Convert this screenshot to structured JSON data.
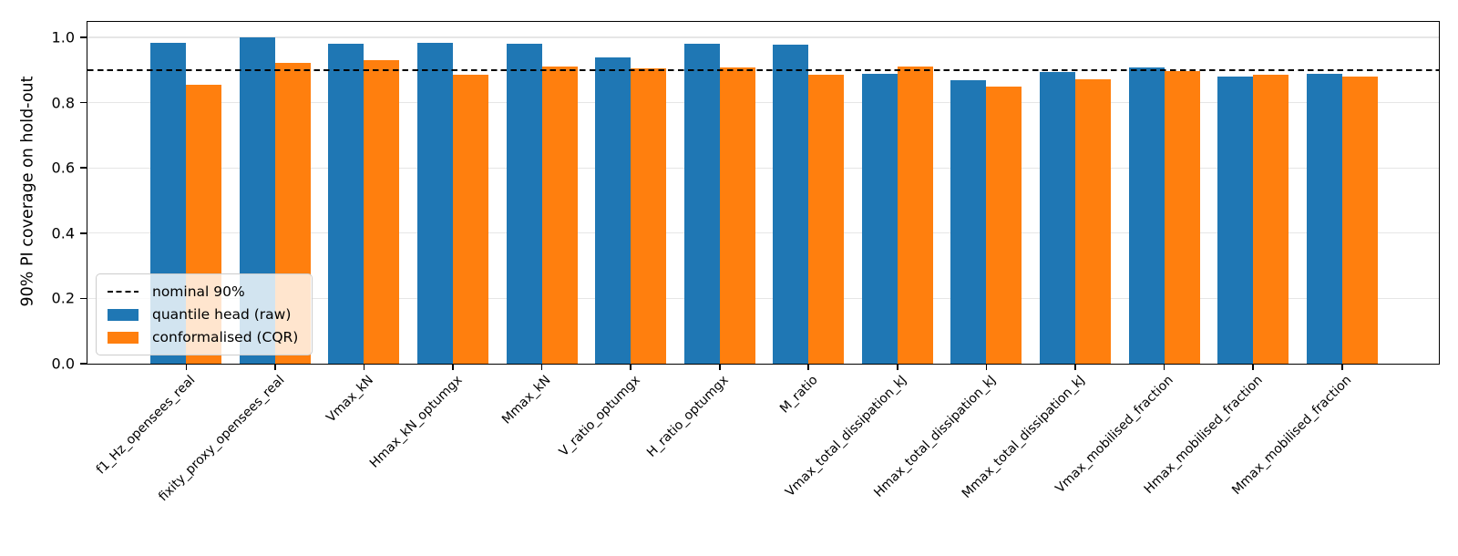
{
  "chart_data": {
    "type": "bar",
    "title": "",
    "xlabel": "",
    "ylabel": "90% PI coverage on hold-out",
    "ylim": [
      0.0,
      1.047
    ],
    "yticks": [
      0.0,
      0.2,
      0.4,
      0.6,
      0.8,
      1.0
    ],
    "grid": "horizontal gridlines at y-tick values, light gray",
    "legend_position": "lower-left",
    "categories": [
      "f1_Hz_opensees_real",
      "fixity_proxy_opensees_real",
      "Vmax_kN",
      "Hmax_kN_optumgx",
      "Mmax_kN",
      "V_ratio_optumgx",
      "H_ratio_optumgx",
      "M_ratio",
      "Vmax_total_dissipation_kJ",
      "Hmax_total_dissipation_kJ",
      "Mmax_total_dissipation_kJ",
      "Vmax_mobilised_fraction",
      "Hmax_mobilised_fraction",
      "Mmax_mobilised_fraction"
    ],
    "series": [
      {
        "name": "quantile head (raw)",
        "color": "#1f77b4",
        "values": [
          0.984,
          1.0,
          0.981,
          0.984,
          0.981,
          0.939,
          0.981,
          0.977,
          0.888,
          0.87,
          0.893,
          0.907,
          0.881,
          0.889
        ]
      },
      {
        "name": "conformalised (CQR)",
        "color": "#ff7f0e",
        "values": [
          0.854,
          0.921,
          0.93,
          0.885,
          0.91,
          0.905,
          0.907,
          0.885,
          0.911,
          0.849,
          0.871,
          0.897,
          0.885,
          0.879
        ]
      }
    ],
    "reference_line": {
      "label": "nominal 90%",
      "value": 0.9,
      "style": "dashed",
      "color": "#000000"
    }
  }
}
